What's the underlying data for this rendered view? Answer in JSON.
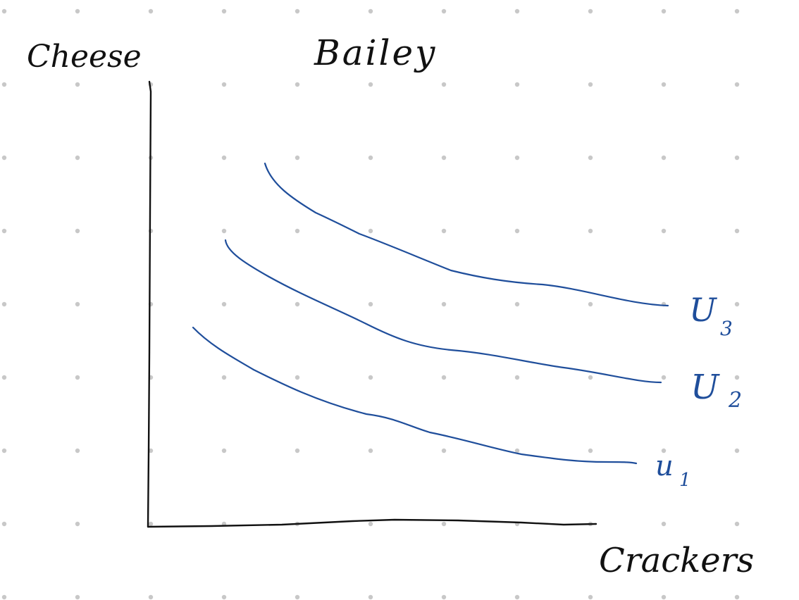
{
  "title": "Bailey",
  "y_axis_label": "Cheese",
  "x_axis_label": "Crackers",
  "curves": [
    {
      "name": "indifference-curve-u3",
      "label_main": "U",
      "label_sub": "3"
    },
    {
      "name": "indifference-curve-u2",
      "label_main": "U",
      "label_sub": "2"
    },
    {
      "name": "indifference-curve-u1",
      "label_main": "u",
      "label_sub": "1"
    }
  ],
  "colors": {
    "background": "#ffffff",
    "dot_grid": "#c8c8c8",
    "axis_ink": "#111111",
    "curve_ink": "#1f4e9b",
    "label_ink": "#1f4e9b"
  }
}
